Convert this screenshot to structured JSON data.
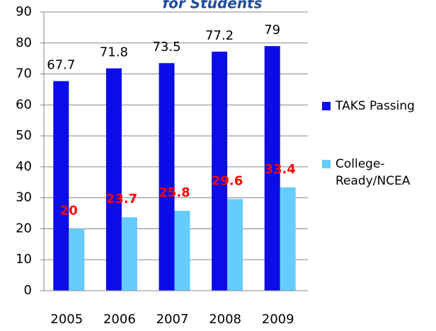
{
  "chart_data": {
    "type": "bar",
    "title": "for Students",
    "categories": [
      "2005",
      "2006",
      "2007",
      "2008",
      "2009"
    ],
    "series": [
      {
        "name": "TAKS Passing",
        "color": "#0c0ce6",
        "values": [
          67.7,
          71.8,
          73.5,
          77.2,
          79
        ]
      },
      {
        "name": "College-Ready/NCEA",
        "color": "#66ccff",
        "values": [
          20,
          23.7,
          25.8,
          29.6,
          33.4
        ]
      }
    ],
    "ylim": [
      0,
      90
    ],
    "yticks": [
      0,
      10,
      20,
      30,
      40,
      50,
      60,
      70,
      80,
      90
    ],
    "grid": true,
    "legend": "right"
  }
}
